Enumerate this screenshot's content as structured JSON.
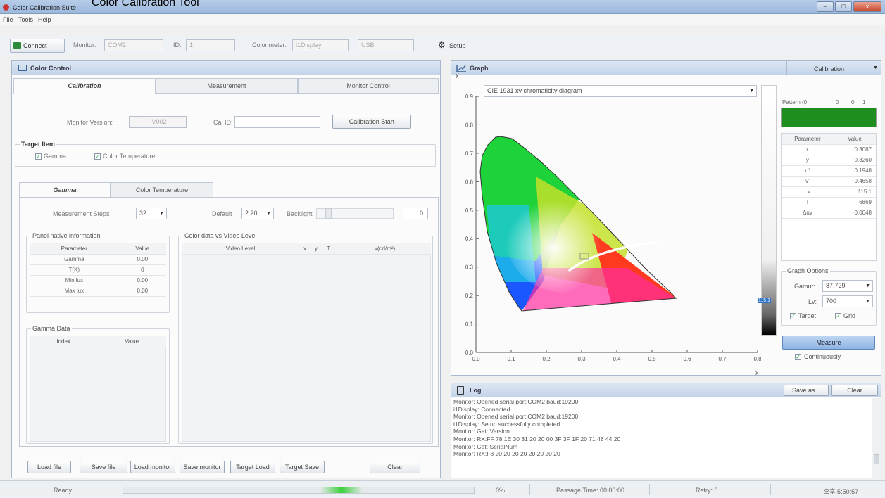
{
  "caption": "Color Calibration Tool",
  "window": {
    "title": "Color Calibration Suite",
    "min": "−",
    "max": "□",
    "close": "x"
  },
  "menu": [
    "File",
    "Tools",
    "Help"
  ],
  "toolbar": {
    "connect": "Connect",
    "monitor_label": "Monitor:",
    "monitor_value": "COM2",
    "id_label": "ID:",
    "id_value": "1",
    "colorimeter_label": "Colorimeter:",
    "colorimeter_value": "i1Display",
    "usb_value": "USB",
    "setup": "Setup"
  },
  "color_control": {
    "title": "Color Control",
    "tabs": [
      "Calibration",
      "Measurement",
      "Monitor Control"
    ],
    "monitor_version_label": "Monitor Version:",
    "monitor_version_value": "V002",
    "cal_id_label": "Cal ID:",
    "cal_id_value": "",
    "calibration_start": "Calibration Start",
    "target_item": {
      "title": "Target Item",
      "gamma": "Gamma",
      "color_temperature": "Color Temperature"
    },
    "subtabs": [
      "Gamma",
      "Color Temperature"
    ],
    "measurement_steps_label": "Measurement Steps",
    "measurement_steps_value": "32",
    "default_label": "Default",
    "default_value": "2.20",
    "backlight_label": "Backlight",
    "backlight_value": "0",
    "panel_native": {
      "title": "Panel native information",
      "headers": [
        "Parameter",
        "Value"
      ],
      "rows": [
        [
          "Gamma",
          "0.00"
        ],
        [
          "T(K)",
          "0"
        ],
        [
          "Min lux",
          "0.00"
        ],
        [
          "Max lux",
          "0.00"
        ]
      ]
    },
    "color_data": {
      "title": "Color data vs Video Level",
      "headers": [
        "Video Level",
        "x",
        "y",
        "T",
        "Lv(cd/m²)"
      ]
    },
    "gamma_data": {
      "title": "Gamma Data",
      "headers": [
        "Index",
        "Value"
      ]
    },
    "buttons": [
      "Load file",
      "Save file",
      "Load monitor",
      "Save monitor",
      "Target Load",
      "Target Save",
      "Clear"
    ]
  },
  "graph": {
    "title": "Graph",
    "mode": "Calibration",
    "diagram": "CIE 1931 xy chromaticity diagram",
    "y_ticks": [
      "0.9",
      "0.8",
      "0.7",
      "0.6",
      "0.5",
      "0.4",
      "0.3",
      "0.2",
      "0.1",
      "0.0"
    ],
    "x_ticks": [
      "0.0",
      "0.1",
      "0.2",
      "0.3",
      "0.4",
      "0.5",
      "0.6",
      "0.7",
      "0.8"
    ],
    "y_axis": "y",
    "x_axis": "x",
    "pattern_label": "Pattern (0",
    "pattern_vals": [
      "0",
      "0",
      "1"
    ],
    "pattern_color": "#1e8e1e",
    "params": {
      "headers": [
        "Parameter",
        "Value"
      ],
      "rows": [
        [
          "x",
          "0.3067"
        ],
        [
          "y",
          "0.3260"
        ],
        [
          "u'",
          "0.1948"
        ],
        [
          "v'",
          "0.4658"
        ],
        [
          "Lv",
          "115.1"
        ],
        [
          "T",
          "6869"
        ],
        [
          "Δuv",
          "0.0048"
        ]
      ]
    },
    "graph_options": {
      "title": "Graph Options",
      "gamut_label": "Gamut:",
      "gamut_value": "87.729",
      "lv_label": "Lv:",
      "lv_value": "700",
      "target": "Target",
      "grid": "Grid"
    },
    "measure": "Measure",
    "continuously": "Continuously",
    "colorbar_label": "115.1"
  },
  "log": {
    "title": "Log",
    "save_as": "Save as...",
    "clear": "Clear",
    "lines": [
      "Monitor: Opened serial port:COM2 baud:19200",
      "i1Display: Connected.",
      "Monitor: Opened serial port:COM2 baud:19200",
      "i1Display: Setup successfully completed.",
      "Monitor: Get: Version",
      "Monitor: RX:FF 78 1E 30 31 20 20 00 3F 3F 1F 20 71 48 44 20",
      "Monitor: Get: SerialNum",
      "Monitor: RX:F8 20 20 20 20 20 20 20 20"
    ]
  },
  "status": {
    "state": "Ready",
    "progress": "0%",
    "passage": "Passage Time: 00:00:00",
    "retry": "Retry: 0",
    "clock": "오후 5:50:57"
  }
}
